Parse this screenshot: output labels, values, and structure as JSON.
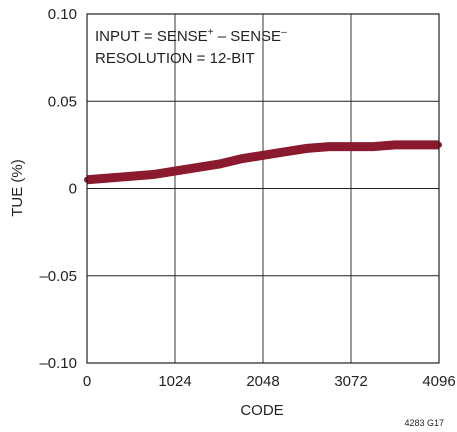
{
  "chart_data": {
    "type": "line",
    "title": "",
    "xlabel": "CODE",
    "ylabel": "TUE (%)",
    "xlim": [
      0,
      4096
    ],
    "ylim": [
      -0.1,
      0.1
    ],
    "x_ticks": [
      0,
      1024,
      2048,
      3072,
      4096
    ],
    "x_tick_labels": [
      "0",
      "1024",
      "2048",
      "3072",
      "4096"
    ],
    "y_ticks": [
      0.1,
      0.05,
      0,
      -0.05,
      -0.1
    ],
    "y_tick_labels": [
      "0.10",
      "0.05",
      "0",
      "–0.05",
      "–0.10"
    ],
    "grid": true,
    "line_color": "#8b1a2e",
    "annotations": {
      "line1": {
        "prefix": "INPUT = SENSE",
        "sup1": "+",
        "middle": " – SENSE",
        "sup2": "–"
      },
      "line2": "RESOLUTION = 12-BIT"
    },
    "figure_id": "4283 G17",
    "series": [
      {
        "x": [
          0,
          256,
          512,
          768,
          1024,
          1280,
          1536,
          1792,
          2048,
          2304,
          2560,
          2816,
          3072,
          3328,
          3584,
          3840,
          4096
        ],
        "y": [
          0.005,
          0.006,
          0.007,
          0.008,
          0.01,
          0.012,
          0.014,
          0.017,
          0.019,
          0.021,
          0.023,
          0.024,
          0.024,
          0.024,
          0.025,
          0.025,
          0.025
        ]
      }
    ]
  }
}
